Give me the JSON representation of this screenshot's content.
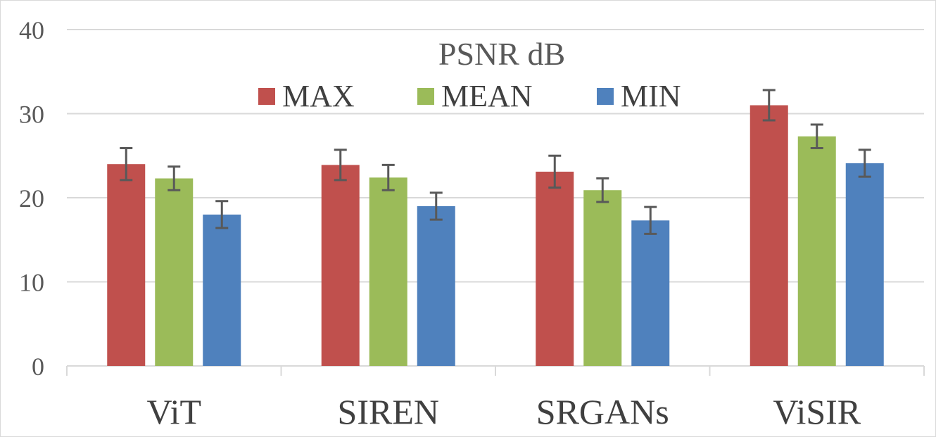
{
  "chart_data": {
    "type": "bar",
    "title": "PSNR dB",
    "xlabel": "",
    "ylabel": "",
    "categories": [
      "ViT",
      "SIREN",
      "SRGANs",
      "ViSIR"
    ],
    "ylim": [
      0,
      40
    ],
    "yticks": [
      0,
      10,
      20,
      30,
      40
    ],
    "grid": true,
    "legend_position": "top-center",
    "series": [
      {
        "name": "MAX",
        "color": "#c0504d",
        "values": [
          24.0,
          23.9,
          23.1,
          31.0
        ],
        "errors": [
          1.9,
          1.8,
          1.9,
          1.8
        ]
      },
      {
        "name": "MEAN",
        "color": "#9bbb59",
        "values": [
          22.3,
          22.4,
          20.9,
          27.3
        ],
        "errors": [
          1.4,
          1.5,
          1.4,
          1.4
        ]
      },
      {
        "name": "MIN",
        "color": "#4f81bd",
        "values": [
          18.0,
          19.0,
          17.3,
          24.1
        ],
        "errors": [
          1.6,
          1.6,
          1.6,
          1.6
        ]
      }
    ]
  }
}
